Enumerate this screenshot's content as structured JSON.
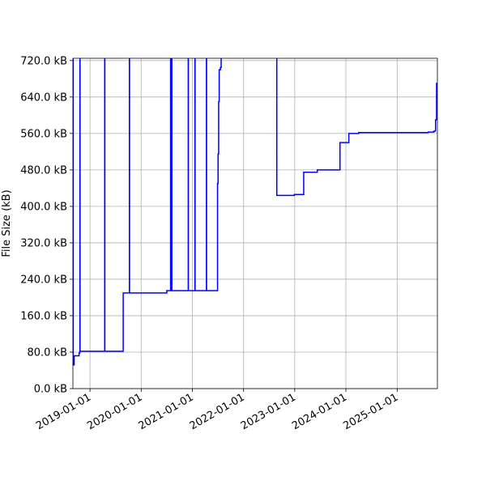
{
  "chart_data": {
    "type": "line",
    "title": "",
    "xlabel": "",
    "ylabel": "File Size (kB)",
    "x_axis_type": "date",
    "xlim": [
      "2018-09-01",
      "2025-10-15"
    ],
    "ylim": [
      0,
      725
    ],
    "grid": true,
    "legend": "none",
    "yticks": [
      0,
      80,
      160,
      240,
      320,
      400,
      480,
      560,
      640,
      720
    ],
    "ytick_labels": [
      "0.0 kB",
      "80.0 kB",
      "160.0 kB",
      "240.0 kB",
      "320.0 kB",
      "400.0 kB",
      "480.0 kB",
      "560.0 kB",
      "640.0 kB",
      "720.0 kB"
    ],
    "xticks": [
      "2019-01-01",
      "2020-01-01",
      "2021-01-01",
      "2022-01-01",
      "2023-01-01",
      "2024-01-01",
      "2025-01-01"
    ],
    "xtick_labels": [
      "2019-01-01",
      "2020-01-01",
      "2021-01-01",
      "2022-01-01",
      "2023-01-01",
      "2024-01-01",
      "2025-01-01"
    ],
    "series": [
      {
        "color": "#0000ff",
        "points": [
          [
            "2018-09-01",
            740
          ],
          [
            "2018-09-02",
            740
          ],
          [
            "2018-09-03",
            52
          ],
          [
            "2018-09-10",
            72
          ],
          [
            "2018-10-10",
            72
          ],
          [
            "2018-10-15",
            78
          ],
          [
            "2018-10-20",
            82
          ],
          [
            "2018-10-21",
            740
          ],
          [
            "2018-10-22",
            82
          ],
          [
            "2019-04-15",
            82
          ],
          [
            "2019-04-16",
            740
          ],
          [
            "2019-04-17",
            82
          ],
          [
            "2019-08-25",
            82
          ],
          [
            "2019-08-26",
            210
          ],
          [
            "2019-10-08",
            210
          ],
          [
            "2019-10-09",
            740
          ],
          [
            "2019-10-10",
            210
          ],
          [
            "2020-07-01",
            210
          ],
          [
            "2020-07-02",
            215
          ],
          [
            "2020-07-28",
            215
          ],
          [
            "2020-07-29",
            740
          ],
          [
            "2020-07-30",
            215
          ],
          [
            "2020-08-05",
            215
          ],
          [
            "2020-08-06",
            740
          ],
          [
            "2020-08-07",
            215
          ],
          [
            "2020-12-01",
            215
          ],
          [
            "2020-12-02",
            740
          ],
          [
            "2020-12-03",
            215
          ],
          [
            "2021-01-18",
            215
          ],
          [
            "2021-01-19",
            740
          ],
          [
            "2021-01-20",
            215
          ],
          [
            "2021-04-10",
            215
          ],
          [
            "2021-04-11",
            740
          ],
          [
            "2021-04-12",
            215
          ],
          [
            "2021-06-28",
            215
          ],
          [
            "2021-06-29",
            450
          ],
          [
            "2021-07-02",
            450
          ],
          [
            "2021-07-03",
            515
          ],
          [
            "2021-07-06",
            515
          ],
          [
            "2021-07-07",
            630
          ],
          [
            "2021-07-10",
            630
          ],
          [
            "2021-07-11",
            700
          ],
          [
            "2021-07-20",
            705
          ],
          [
            "2021-07-25",
            730
          ],
          [
            "2022-01-15",
            732
          ],
          [
            "2022-08-25",
            732
          ],
          [
            "2022-08-26",
            424
          ],
          [
            "2022-12-28",
            424
          ],
          [
            "2022-12-29",
            426
          ],
          [
            "2023-03-05",
            426
          ],
          [
            "2023-03-06",
            475
          ],
          [
            "2023-06-10",
            475
          ],
          [
            "2023-06-11",
            480
          ],
          [
            "2023-11-15",
            480
          ],
          [
            "2023-11-20",
            540
          ],
          [
            "2024-01-18",
            540
          ],
          [
            "2024-01-22",
            560
          ],
          [
            "2024-04-01",
            562
          ],
          [
            "2025-08-01",
            562
          ],
          [
            "2025-08-10",
            563
          ],
          [
            "2025-09-15",
            563
          ],
          [
            "2025-09-20",
            565
          ],
          [
            "2025-10-01",
            567
          ],
          [
            "2025-10-02",
            590
          ],
          [
            "2025-10-08",
            590
          ],
          [
            "2025-10-09",
            670
          ],
          [
            "2025-10-15",
            670
          ]
        ]
      }
    ]
  }
}
